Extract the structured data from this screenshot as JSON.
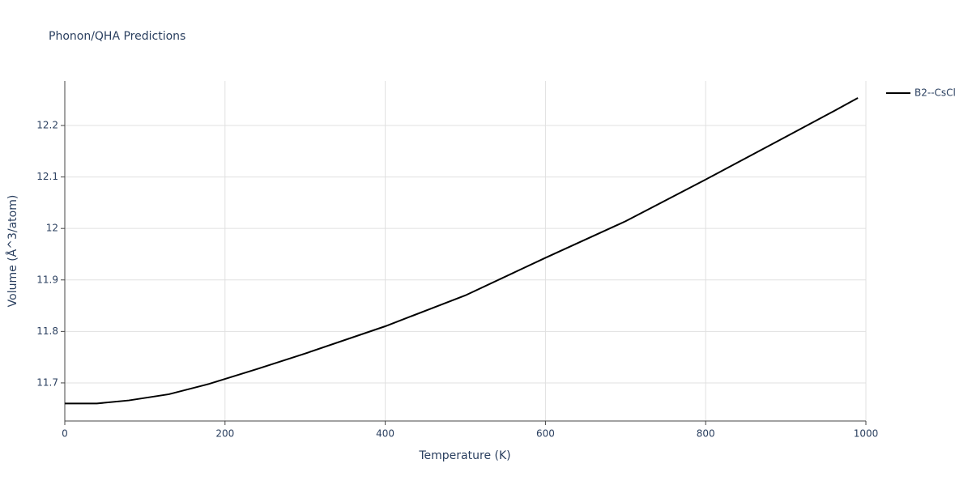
{
  "chart_data": {
    "type": "line",
    "title": "Phonon/QHA Predictions",
    "x_label": "Temperature (K)",
    "y_label": "Volume (Å^3/atom)",
    "x": [
      0,
      40,
      80,
      130,
      180,
      240,
      300,
      400,
      500,
      600,
      700,
      800,
      900,
      960,
      990
    ],
    "series": [
      {
        "name": "B2--CsCl",
        "color": "#000000",
        "values": [
          11.66,
          11.66,
          11.666,
          11.678,
          11.698,
          11.727,
          11.757,
          11.81,
          11.87,
          11.943,
          12.014,
          12.095,
          12.178,
          12.228,
          12.2535
        ]
      }
    ],
    "xlim": [
      0,
      1000
    ],
    "xticks": [
      0,
      200,
      400,
      600,
      800,
      1000
    ],
    "ylim": [
      11.626,
      12.2865
    ],
    "yticks": [
      11.7,
      11.8,
      11.9,
      12,
      12.1,
      12.2
    ],
    "grid": true,
    "legend": "right"
  }
}
